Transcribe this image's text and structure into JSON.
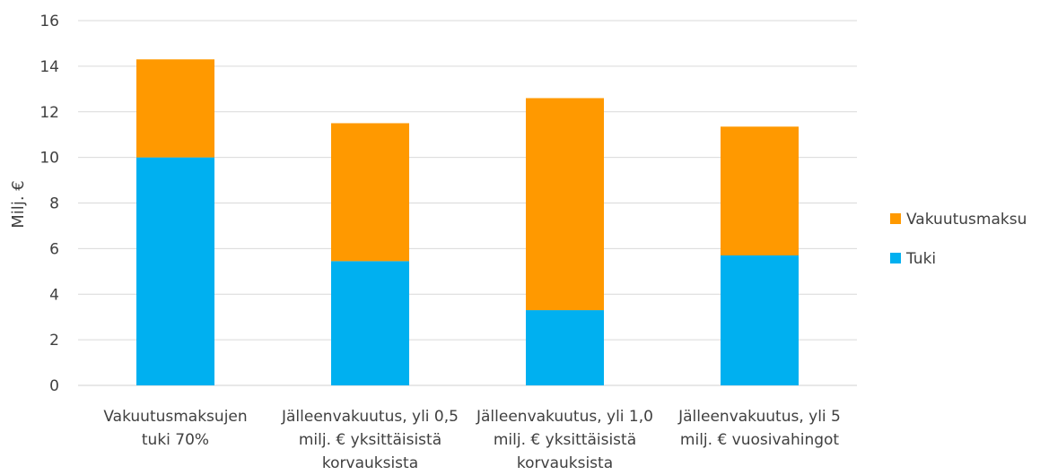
{
  "chart_data": {
    "type": "bar",
    "stacked": true,
    "title": "",
    "xlabel": "",
    "ylabel": "Milj. €",
    "ylim": [
      0,
      16
    ],
    "yticks": [
      0,
      2,
      4,
      6,
      8,
      10,
      12,
      14,
      16
    ],
    "grid": true,
    "legend_position": "right",
    "categories": [
      [
        "Vakuutusmaksujen",
        "tuki 70%"
      ],
      [
        "Jälleenvakuutus, yli 0,5",
        "milj. € yksittäisistä",
        "korvauksista"
      ],
      [
        "Jälleenvakuutus, yli 1,0",
        "milj. € yksittäisistä",
        "korvauksista"
      ],
      [
        "Jälleenvakuutus, yli 5",
        "milj. € vuosivahingot"
      ]
    ],
    "series": [
      {
        "name": "Tuki",
        "color": "#00b0f0",
        "values": [
          10.0,
          5.45,
          3.3,
          5.7
        ]
      },
      {
        "name": "Vakuutusmaksu",
        "color": "#ff9900",
        "values": [
          4.3,
          6.05,
          9.3,
          5.65
        ]
      }
    ],
    "legend_order": [
      "Vakuutusmaksu",
      "Tuki"
    ]
  }
}
